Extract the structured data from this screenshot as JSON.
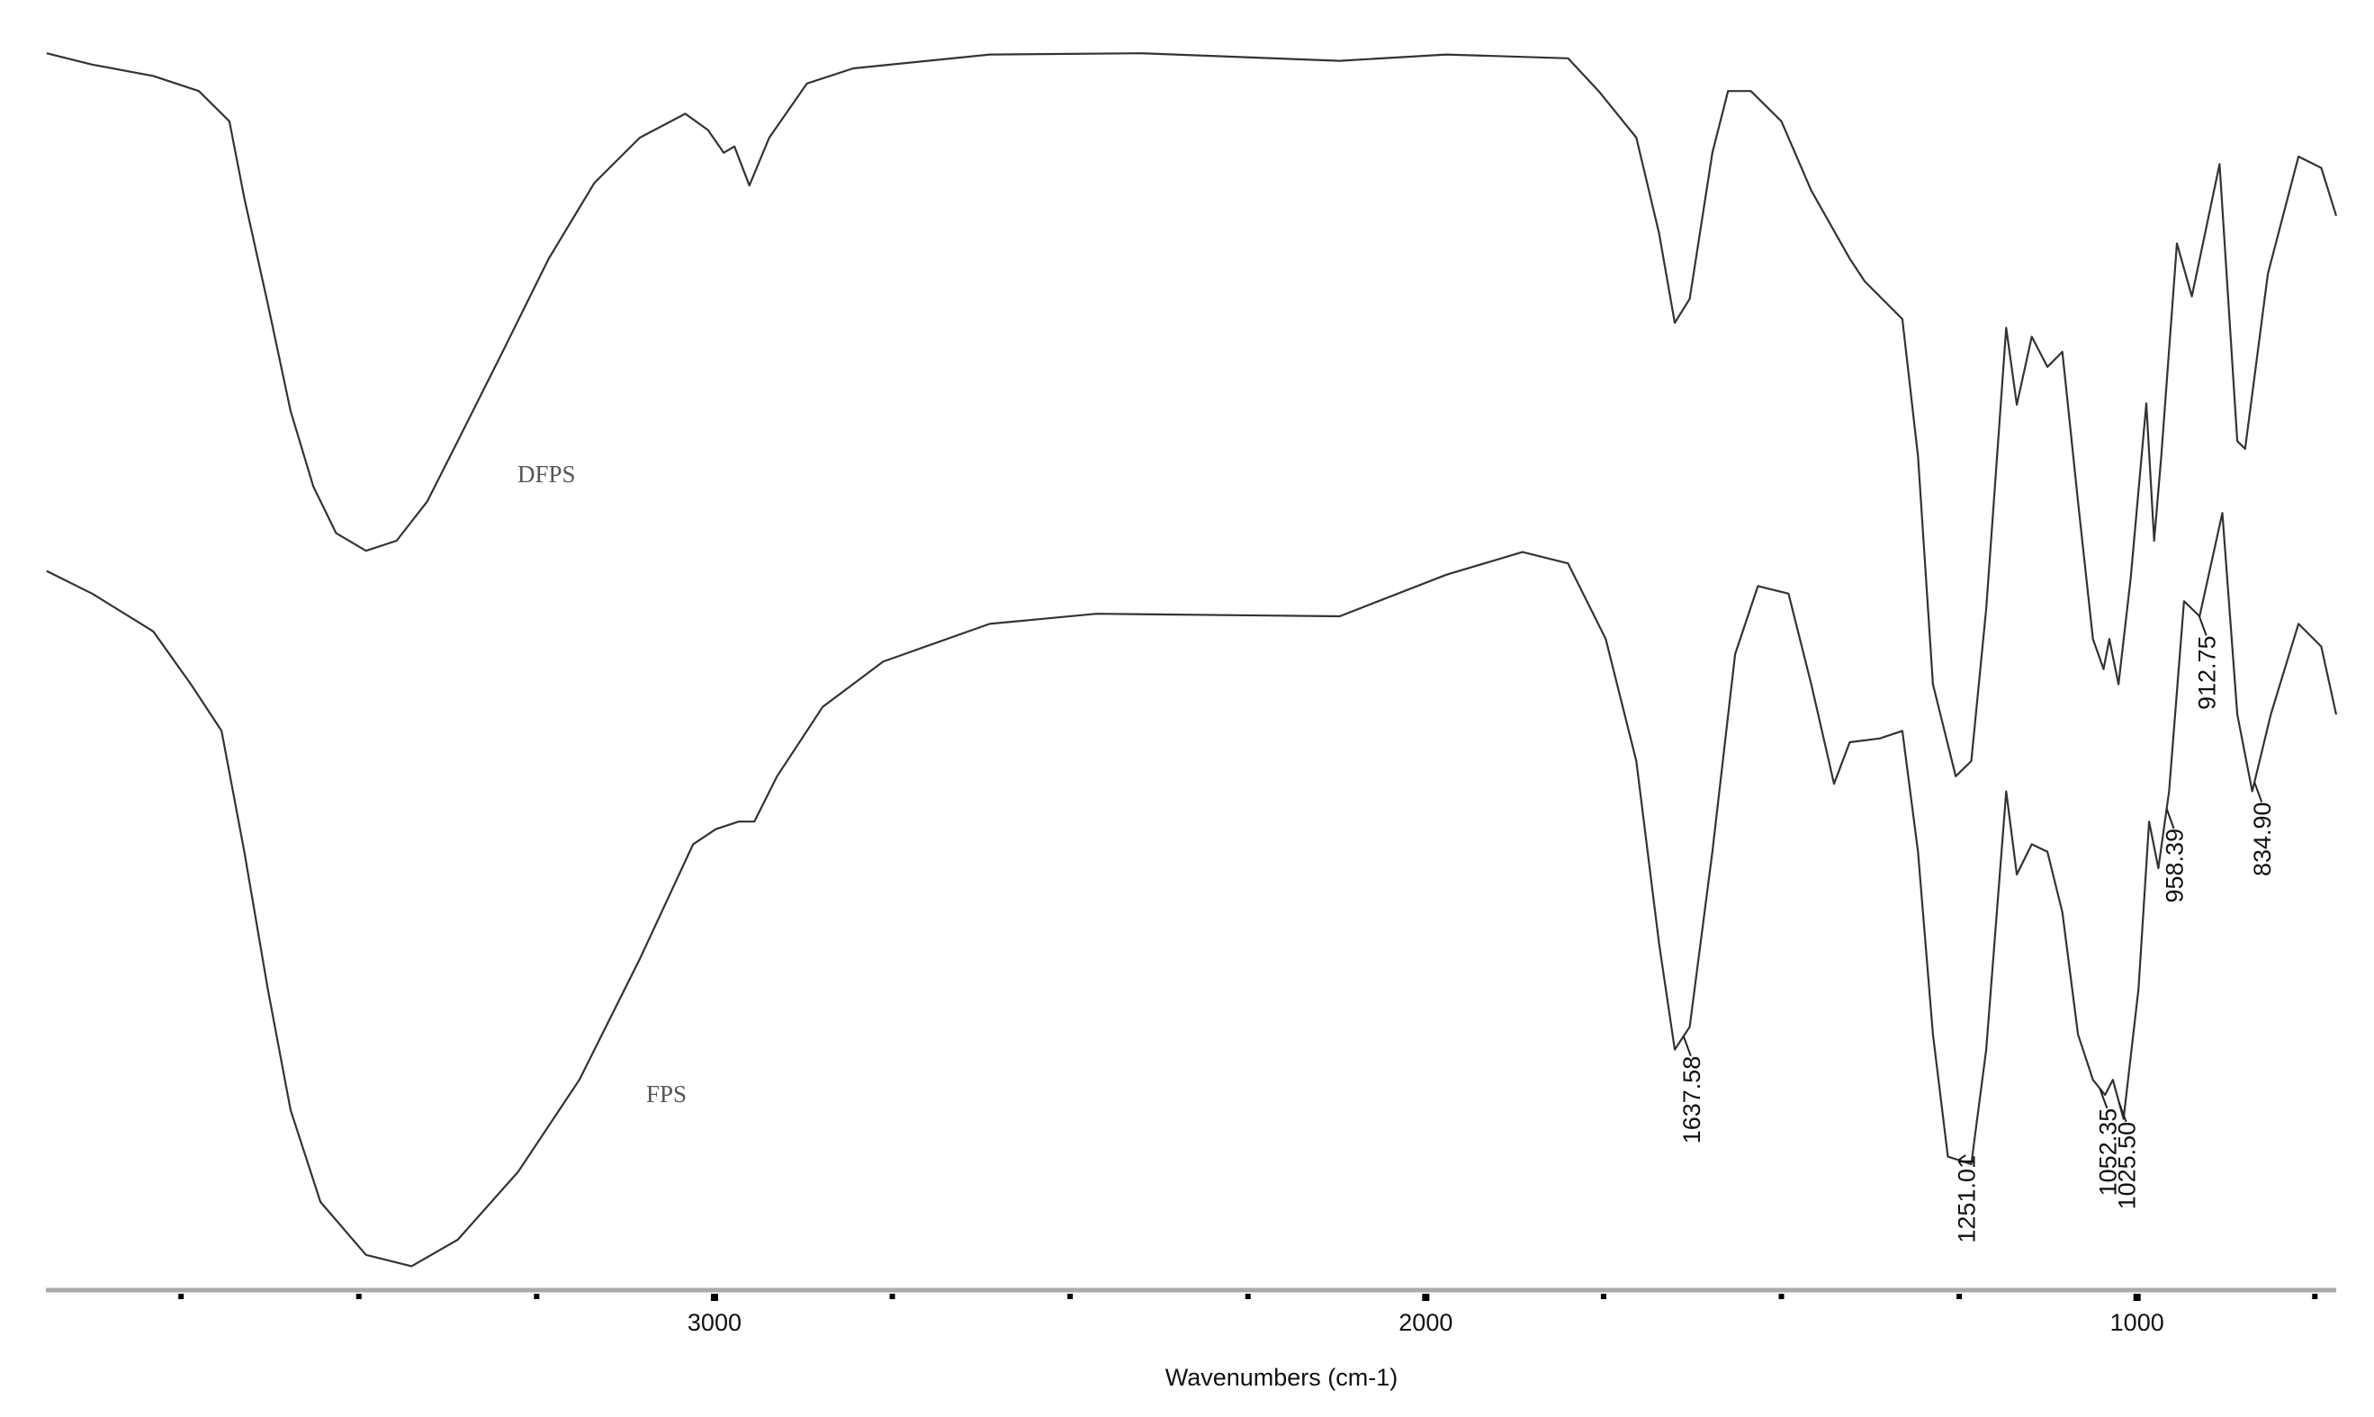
{
  "chart_data": {
    "type": "line",
    "x_label": "Wavenumbers (cm-1)",
    "xlim": [
      3940,
      720
    ],
    "xticks": [
      3000,
      2000,
      1000
    ],
    "xminorticks": [
      3750,
      3500,
      3250,
      2750,
      2500,
      2250,
      1750,
      1500,
      1250,
      750
    ],
    "ylim": [
      0,
      100
    ],
    "grid": false,
    "series": [
      {
        "name": "DFPS",
        "color": "#333333",
        "x": [
          3939,
          3875,
          3789,
          3725,
          3682,
          3661,
          3628,
          3596,
          3564,
          3532,
          3490,
          3447,
          3404,
          3361,
          3297,
          3233,
          3169,
          3105,
          3041,
          3009,
          2987,
          2972,
          2951,
          2923,
          2870,
          2805,
          2613,
          2399,
          2121,
          1971,
          1800,
          1757,
          1704,
          1672,
          1650,
          1629,
          1597,
          1575,
          1543,
          1500,
          1458,
          1404,
          1383,
          1330,
          1308,
          1287,
          1255,
          1233,
          1212,
          1184,
          1169,
          1148,
          1126,
          1105,
          1083,
          1062,
          1047,
          1039,
          1026,
          1009,
          987,
          976,
          966,
          944,
          923,
          884,
          859,
          848,
          816,
          773,
          741,
          720
        ],
        "values": [
          98.2,
          97.3,
          96.4,
          95.2,
          92.8,
          86.7,
          78.3,
          69.8,
          63.8,
          60.1,
          58.7,
          59.5,
          62.6,
          67.4,
          74.6,
          81.9,
          87.9,
          91.5,
          93.4,
          92.1,
          90.3,
          90.8,
          87.7,
          91.5,
          95.8,
          97.0,
          98.1,
          98.2,
          97.6,
          98.1,
          97.8,
          95.2,
          91.5,
          83.9,
          76.8,
          78.7,
          90.3,
          95.2,
          95.2,
          92.8,
          87.3,
          81.9,
          80.1,
          77.1,
          66.2,
          48.1,
          40.8,
          42.0,
          54.1,
          76.4,
          70.3,
          75.7,
          73.3,
          74.5,
          62.6,
          51.7,
          49.3,
          51.7,
          48.1,
          56.5,
          70.4,
          59.5,
          66.2,
          83.1,
          78.9,
          89.4,
          67.4,
          66.8,
          80.7,
          90.0,
          89.1,
          85.3
        ]
      },
      {
        "name": "FPS",
        "color": "#333333",
        "x": [
          3939,
          3875,
          3789,
          3736,
          3693,
          3661,
          3628,
          3596,
          3554,
          3490,
          3426,
          3361,
          3276,
          3190,
          3105,
          3030,
          2998,
          2966,
          2944,
          2912,
          2848,
          2763,
          2613,
          2463,
          2121,
          1971,
          1864,
          1800,
          1747,
          1704,
          1672,
          1650,
          1629,
          1597,
          1565,
          1533,
          1490,
          1458,
          1426,
          1404,
          1362,
          1330,
          1308,
          1287,
          1266,
          1233,
          1212,
          1184,
          1169,
          1148,
          1126,
          1105,
          1083,
          1062,
          1045,
          1034,
          1019,
          998,
          983,
          970,
          955,
          934,
          912,
          880,
          859,
          838,
          812,
          773,
          741,
          720
        ],
        "values": [
          57.1,
          55.3,
          52.3,
          48.1,
          44.4,
          34.8,
          23.9,
          14.3,
          7.0,
          2.8,
          1.9,
          4.0,
          9.4,
          16.7,
          26.3,
          35.4,
          36.6,
          37.2,
          37.2,
          40.8,
          46.3,
          49.9,
          52.9,
          53.7,
          53.5,
          56.8,
          58.6,
          57.7,
          51.7,
          42.0,
          27.5,
          19.1,
          20.9,
          34.8,
          50.5,
          55.9,
          55.3,
          48.1,
          40.2,
          43.5,
          43.8,
          44.4,
          34.8,
          20.3,
          10.6,
          10.0,
          19.1,
          39.6,
          33.0,
          35.4,
          34.8,
          30.0,
          20.3,
          16.7,
          15.5,
          16.7,
          13.6,
          23.9,
          37.2,
          33.5,
          39.6,
          54.7,
          53.5,
          61.7,
          45.7,
          39.6,
          45.7,
          52.9,
          51.1,
          45.7
        ]
      }
    ],
    "peaks": [
      {
        "value": 1637.58,
        "label": "1637.58"
      },
      {
        "value": 1251.01,
        "label": "1251.01"
      },
      {
        "value": 1052.35,
        "label": "1052.35"
      },
      {
        "value": 1025.5,
        "label": "1025.50"
      },
      {
        "value": 958.39,
        "label": "958.39"
      },
      {
        "value": 912.75,
        "label": "912.75"
      },
      {
        "value": 834.9,
        "label": "834.90"
      }
    ]
  }
}
